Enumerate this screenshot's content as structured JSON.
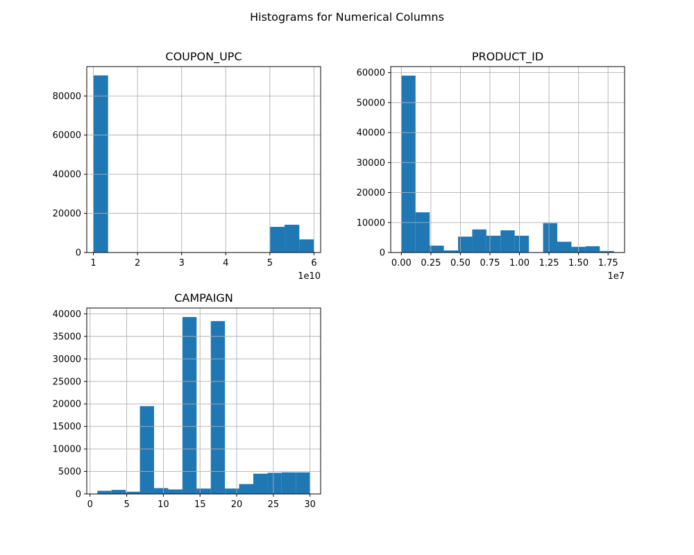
{
  "figure": {
    "suptitle": "Histograms for Numerical Columns"
  },
  "chart_data": [
    {
      "type": "bar",
      "histogram": true,
      "title": "COUPON_UPC",
      "color": "#1f77b4",
      "grid": true,
      "offset_label": "1e10",
      "bin_edges": [
        1.0,
        1.333,
        1.667,
        2.0,
        2.333,
        2.667,
        3.0,
        3.333,
        3.667,
        4.0,
        4.333,
        4.667,
        5.0,
        5.333,
        5.667,
        6.0
      ],
      "values": [
        90500,
        0,
        0,
        0,
        0,
        0,
        0,
        0,
        0,
        0,
        0,
        0,
        13100,
        14200,
        6700
      ],
      "xlim": [
        0.85,
        6.15
      ],
      "ylim": [
        0,
        95000
      ],
      "xticks": [
        1,
        2,
        3,
        4,
        5,
        6
      ],
      "xtick_labels": [
        "1",
        "2",
        "3",
        "4",
        "5",
        "6"
      ],
      "yticks": [
        0,
        20000,
        40000,
        60000,
        80000
      ],
      "ytick_labels": [
        "0",
        "20000",
        "40000",
        "60000",
        "80000"
      ]
    },
    {
      "type": "bar",
      "histogram": true,
      "title": "PRODUCT_ID",
      "color": "#1f77b4",
      "grid": true,
      "offset_label": "1e7",
      "bin_edges": [
        0.0,
        0.12,
        0.24,
        0.36,
        0.48,
        0.6,
        0.72,
        0.84,
        0.96,
        1.08,
        1.2,
        1.32,
        1.44,
        1.56,
        1.68,
        1.8
      ],
      "values": [
        59000,
        13400,
        2300,
        700,
        5300,
        7700,
        5600,
        7400,
        5600,
        0,
        9800,
        3600,
        1900,
        2100,
        500
      ],
      "xlim": [
        -0.09,
        1.89
      ],
      "ylim": [
        0,
        62000
      ],
      "xticks": [
        0.0,
        0.25,
        0.5,
        0.75,
        1.0,
        1.25,
        1.5,
        1.75
      ],
      "xtick_labels": [
        "0.00",
        "0.25",
        "0.50",
        "0.75",
        "1.00",
        "1.25",
        "1.50",
        "1.75"
      ],
      "yticks": [
        0,
        10000,
        20000,
        30000,
        40000,
        50000,
        60000
      ],
      "ytick_labels": [
        "0",
        "10000",
        "20000",
        "30000",
        "40000",
        "50000",
        "60000"
      ]
    },
    {
      "type": "bar",
      "histogram": true,
      "title": "CAMPAIGN",
      "color": "#1f77b4",
      "grid": true,
      "offset_label": "",
      "bin_edges": [
        1,
        2.933,
        4.867,
        6.8,
        8.733,
        10.667,
        12.6,
        14.533,
        16.467,
        18.4,
        20.333,
        22.267,
        24.2,
        26.133,
        28.067,
        30
      ],
      "values": [
        700,
        900,
        500,
        19500,
        1300,
        1000,
        39300,
        1200,
        38400,
        1200,
        2200,
        4500,
        4700,
        4800,
        4800
      ],
      "xlim": [
        -0.45,
        31.45
      ],
      "ylim": [
        0,
        41300
      ],
      "xticks": [
        0,
        5,
        10,
        15,
        20,
        25,
        30
      ],
      "xtick_labels": [
        "0",
        "5",
        "10",
        "15",
        "20",
        "25",
        "30"
      ],
      "yticks": [
        0,
        5000,
        10000,
        15000,
        20000,
        25000,
        30000,
        35000,
        40000
      ],
      "ytick_labels": [
        "0",
        "5000",
        "10000",
        "15000",
        "20000",
        "25000",
        "30000",
        "35000",
        "40000"
      ]
    }
  ]
}
